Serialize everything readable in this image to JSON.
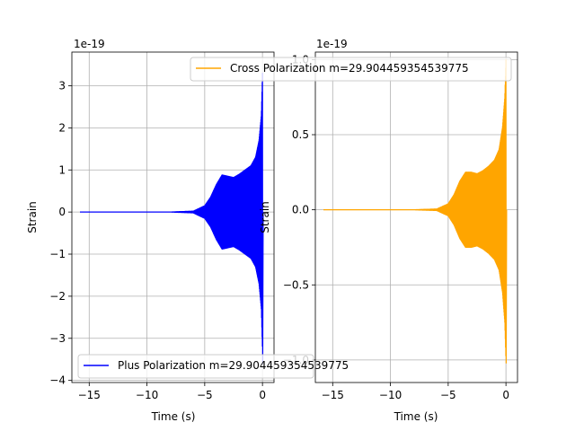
{
  "chart_data": [
    {
      "type": "line",
      "xlabel": "Time (s)",
      "ylabel": "Strain",
      "offset_text": "1e-19",
      "xlim": [
        -16.5,
        1.0
      ],
      "ylim": [
        -4.05,
        3.8
      ],
      "xticks": [
        -15,
        -10,
        -5,
        0
      ],
      "xtick_labels": [
        "−15",
        "−10",
        "−5",
        "0"
      ],
      "yticks": [
        -4,
        -3,
        -2,
        -1,
        0,
        1,
        2,
        3
      ],
      "ytick_labels": [
        "−4",
        "−3",
        "−2",
        "−1",
        "0",
        "1",
        "2",
        "3"
      ],
      "grid": true,
      "legend_position": "lower-left",
      "series": [
        {
          "name": "Plus Polarization m=29.904459354539775",
          "color": "#0000ff",
          "envelope": {
            "t": [
              -15.8,
              -8.0,
              -6.0,
              -5.0,
              -4.5,
              -4.0,
              -3.5,
              -3.0,
              -2.5,
              -2.0,
              -1.5,
              -1.0,
              -0.6,
              -0.3,
              -0.1,
              0.0
            ],
            "amplitude": [
              0.0,
              0.0,
              0.02,
              0.15,
              0.35,
              0.65,
              0.88,
              0.85,
              0.82,
              0.9,
              1.0,
              1.1,
              1.3,
              1.7,
              2.3,
              3.3
            ],
            "min_at_merger": -3.6
          }
        }
      ]
    },
    {
      "type": "line",
      "xlabel": "Time (s)",
      "ylabel": "Strain",
      "offset_text": "1e-19",
      "xlim": [
        -16.5,
        1.0
      ],
      "ylim": [
        -1.15,
        1.05
      ],
      "xticks": [
        -15,
        -10,
        -5,
        0
      ],
      "xtick_labels": [
        "−15",
        "−10",
        "−5",
        "0"
      ],
      "yticks": [
        -1.0,
        -0.5,
        0.0,
        0.5,
        1.0
      ],
      "ytick_labels": [
        "−1.0",
        "−0.5",
        "0.0",
        "0.5",
        "1.0"
      ],
      "grid": true,
      "legend_position": "top-right",
      "series": [
        {
          "name": "Cross Polarization m=29.904459354539775",
          "color": "#ffa500",
          "envelope": {
            "t": [
              -15.8,
              -8.0,
              -6.0,
              -5.0,
              -4.5,
              -4.0,
              -3.5,
              -3.0,
              -2.5,
              -2.0,
              -1.5,
              -1.0,
              -0.6,
              -0.3,
              -0.1,
              0.0
            ],
            "amplitude": [
              0.0,
              0.0,
              0.005,
              0.04,
              0.1,
              0.19,
              0.25,
              0.25,
              0.24,
              0.26,
              0.29,
              0.33,
              0.4,
              0.55,
              0.75,
              1.0
            ],
            "min_at_merger": -1.02
          }
        }
      ]
    }
  ]
}
